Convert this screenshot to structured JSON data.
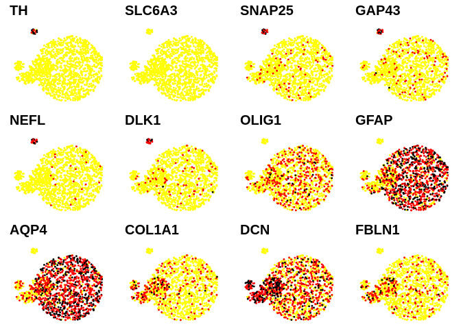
{
  "chart_data": {
    "type": "scatter",
    "layout": "4x3 facet grid of embedding scatter plots (no axes, no legend)",
    "color_scale": [
      "#ffff00",
      "#ff0000",
      "#000000"
    ],
    "color_scale_meaning": "low -> high expression",
    "panels": [
      {
        "gene": "TH",
        "level": {
          "island": 0.85,
          "left": 0.0,
          "main": 0.0
        }
      },
      {
        "gene": "SLC6A3",
        "level": {
          "island": 0.0,
          "left": 0.0,
          "main": 0.0
        }
      },
      {
        "gene": "SNAP25",
        "level": {
          "island": 0.95,
          "left": 0.05,
          "main": 0.04
        }
      },
      {
        "gene": "GAP43",
        "level": {
          "island": 0.95,
          "left": 0.05,
          "main": 0.06
        }
      },
      {
        "gene": "NEFL",
        "level": {
          "island": 0.9,
          "left": 0.0,
          "main": 0.02
        }
      },
      {
        "gene": "DLK1",
        "level": {
          "island": 0.75,
          "left": 0.05,
          "main": 0.03
        }
      },
      {
        "gene": "OLIG1",
        "level": {
          "island": 0.0,
          "left": 0.15,
          "main": 0.25
        }
      },
      {
        "gene": "GFAP",
        "level": {
          "island": 0.0,
          "left": 0.15,
          "main": 0.8
        }
      },
      {
        "gene": "AQP4",
        "level": {
          "island": 0.0,
          "left": 0.3,
          "main": 0.85
        }
      },
      {
        "gene": "COL1A1",
        "level": {
          "island": 0.0,
          "left": 0.35,
          "main": 0.1
        }
      },
      {
        "gene": "DCN",
        "level": {
          "island": 0.0,
          "left": 0.9,
          "main": 0.45
        }
      },
      {
        "gene": "FBLN1",
        "level": {
          "island": 0.0,
          "left": 0.4,
          "main": 0.1
        }
      }
    ]
  }
}
